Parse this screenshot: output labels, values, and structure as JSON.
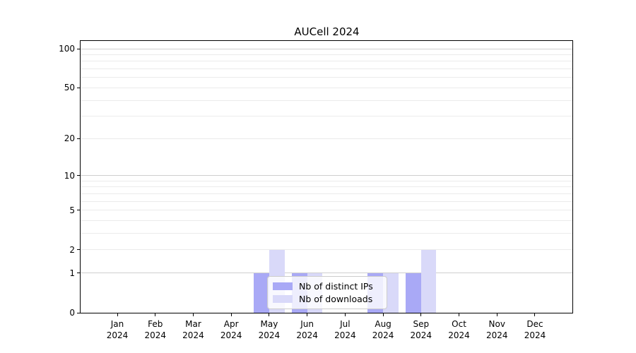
{
  "title": "AUCell 2024",
  "chart_data": {
    "type": "bar",
    "title": "AUCell 2024",
    "categories": [
      "Jan",
      "Feb",
      "Mar",
      "Apr",
      "May",
      "Jun",
      "Jul",
      "Aug",
      "Sep",
      "Oct",
      "Nov",
      "Dec"
    ],
    "x_year": "2024",
    "series": [
      {
        "name": "Nb of distinct IPs",
        "color": "#a9a9f6",
        "values": [
          0,
          0,
          0,
          0,
          1,
          1,
          0,
          1,
          1,
          0,
          0,
          0
        ]
      },
      {
        "name": "Nb of downloads",
        "color": "#d9d9f9",
        "values": [
          0,
          0,
          0,
          0,
          2,
          1,
          0,
          1,
          2,
          0,
          0,
          0
        ]
      }
    ],
    "yscale": "log1p",
    "ylim": [
      0,
      115
    ],
    "ytick_values": [
      0,
      1,
      2,
      5,
      10,
      20,
      50,
      100
    ],
    "ytick_labels": [
      "0",
      "1",
      "2",
      "5",
      "10",
      "20",
      "50",
      "100"
    ],
    "minor_grid_values": [
      2,
      3,
      4,
      5,
      6,
      7,
      8,
      9,
      20,
      30,
      40,
      50,
      60,
      70,
      80,
      90
    ],
    "major_grid_values": [
      1,
      10,
      100
    ],
    "grid": "horizontal",
    "legend_position": "lower center",
    "colors": {
      "major_grid": "#cfcfcf",
      "minor_grid": "#ebebeb",
      "spine": "#000000"
    }
  }
}
